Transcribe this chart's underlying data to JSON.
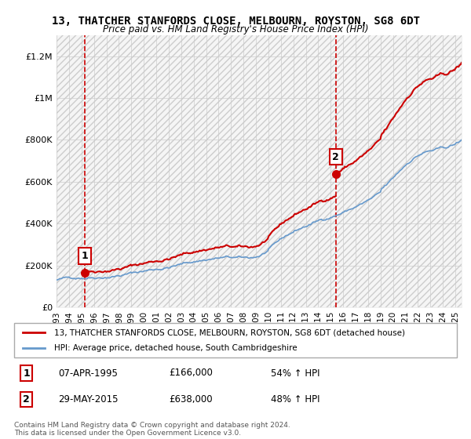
{
  "title": "13, THATCHER STANFORDS CLOSE, MELBOURN, ROYSTON, SG8 6DT",
  "subtitle": "Price paid vs. HM Land Registry's House Price Index (HPI)",
  "legend_line1": "13, THATCHER STANFORDS CLOSE, MELBOURN, ROYSTON, SG8 6DT (detached house)",
  "legend_line2": "HPI: Average price, detached house, South Cambridgeshire",
  "annotation1": {
    "num": "1",
    "date": "07-APR-1995",
    "price": "£166,000",
    "pct": "54% ↑ HPI"
  },
  "annotation2": {
    "num": "2",
    "date": "29-MAY-2015",
    "price": "£638,000",
    "pct": "48% ↑ HPI"
  },
  "footer": "Contains HM Land Registry data © Crown copyright and database right 2024.\nThis data is licensed under the Open Government Licence v3.0.",
  "sale1_year": 1995.27,
  "sale1_price": 166000,
  "sale2_year": 2015.41,
  "sale2_price": 638000,
  "price_line_color": "#cc0000",
  "hpi_line_color": "#6699cc",
  "sale_point_color": "#cc0000",
  "vline_color": "#cc0000",
  "background_hatch_color": "#e8e8e8",
  "ylim_min": 0,
  "ylim_max": 1300000,
  "xlim_min": 1993,
  "xlim_max": 2025.5,
  "yticks": [
    0,
    200000,
    400000,
    600000,
    800000,
    1000000,
    1200000
  ],
  "ytick_labels": [
    "£0",
    "£200K",
    "£400K",
    "£600K",
    "£800K",
    "£1M",
    "£1.2M"
  ],
  "xticks": [
    1993,
    1994,
    1995,
    1996,
    1997,
    1998,
    1999,
    2000,
    2001,
    2002,
    2003,
    2004,
    2005,
    2006,
    2007,
    2008,
    2009,
    2010,
    2011,
    2012,
    2013,
    2014,
    2015,
    2016,
    2017,
    2018,
    2019,
    2020,
    2021,
    2022,
    2023,
    2024,
    2025
  ]
}
